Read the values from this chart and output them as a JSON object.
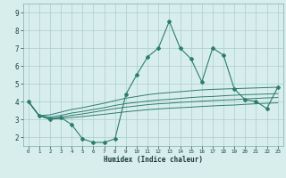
{
  "xlabel": "Humidex (Indice chaleur)",
  "x_values": [
    0,
    1,
    2,
    3,
    4,
    5,
    6,
    7,
    8,
    9,
    10,
    11,
    12,
    13,
    14,
    15,
    16,
    17,
    18,
    19,
    20,
    21,
    22,
    23
  ],
  "y_main": [
    4.0,
    3.2,
    3.0,
    3.1,
    2.7,
    1.9,
    1.7,
    1.7,
    1.9,
    4.4,
    5.5,
    6.5,
    7.0,
    8.5,
    7.0,
    6.4,
    5.1,
    7.0,
    6.6,
    4.7,
    4.1,
    4.0,
    3.6,
    4.8
  ],
  "y_upper": [
    4.0,
    3.2,
    3.25,
    3.4,
    3.55,
    3.65,
    3.78,
    3.9,
    4.05,
    4.18,
    4.28,
    4.38,
    4.45,
    4.5,
    4.55,
    4.6,
    4.65,
    4.68,
    4.7,
    4.72,
    4.74,
    4.76,
    4.78,
    4.8
  ],
  "y_mid1": [
    4.0,
    3.2,
    3.12,
    3.22,
    3.35,
    3.44,
    3.55,
    3.65,
    3.78,
    3.88,
    3.95,
    4.02,
    4.08,
    4.12,
    4.17,
    4.22,
    4.26,
    4.28,
    4.32,
    4.35,
    4.38,
    4.4,
    4.42,
    4.44
  ],
  "y_mid2": [
    4.0,
    3.2,
    3.05,
    3.12,
    3.22,
    3.3,
    3.4,
    3.5,
    3.6,
    3.68,
    3.75,
    3.82,
    3.87,
    3.9,
    3.95,
    3.98,
    4.02,
    4.05,
    4.08,
    4.1,
    4.14,
    4.17,
    4.2,
    4.22
  ],
  "y_lower": [
    4.0,
    3.2,
    3.0,
    3.05,
    3.1,
    3.15,
    3.22,
    3.28,
    3.35,
    3.42,
    3.48,
    3.54,
    3.58,
    3.62,
    3.65,
    3.68,
    3.72,
    3.75,
    3.78,
    3.8,
    3.84,
    3.87,
    3.9,
    3.92
  ],
  "line_color": "#2d7d6e",
  "bg_color": "#d8eeed",
  "grid_color": "#aacece",
  "ylim": [
    1.5,
    9.5
  ],
  "xlim": [
    -0.5,
    23.5
  ],
  "yticks": [
    2,
    3,
    4,
    5,
    6,
    7,
    8,
    9
  ],
  "xticks": [
    0,
    1,
    2,
    3,
    4,
    5,
    6,
    7,
    8,
    9,
    10,
    11,
    12,
    13,
    14,
    15,
    16,
    17,
    18,
    19,
    20,
    21,
    22,
    23
  ]
}
